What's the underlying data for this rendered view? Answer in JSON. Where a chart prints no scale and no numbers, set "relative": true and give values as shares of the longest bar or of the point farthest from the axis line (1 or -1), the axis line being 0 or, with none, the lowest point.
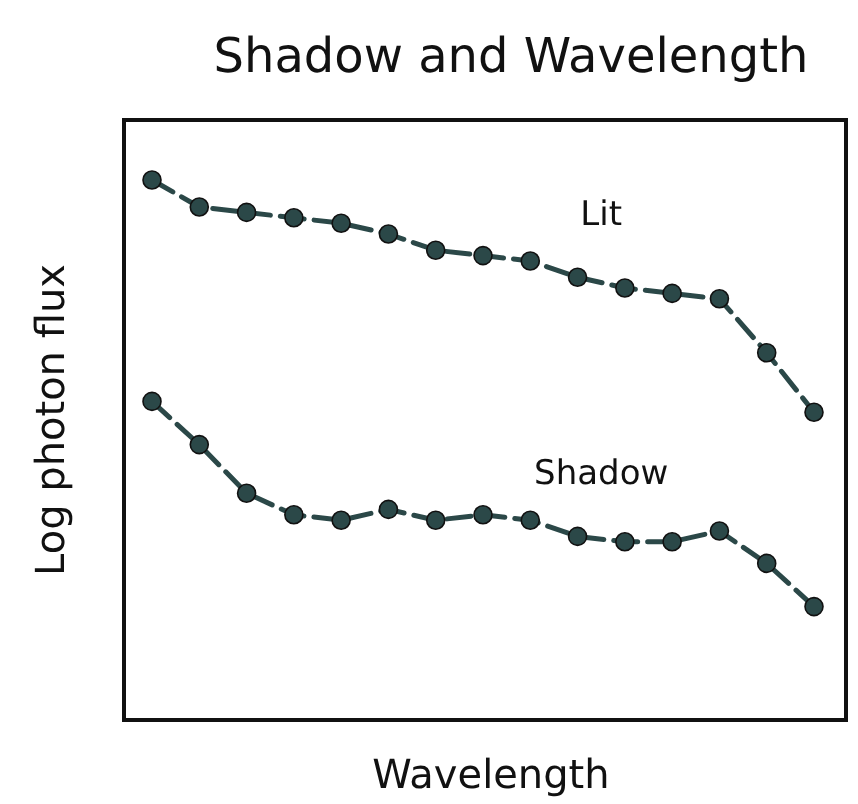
{
  "chart_data": {
    "type": "line",
    "title": "Shadow and Wavelength",
    "xlabel": "Wavelength",
    "ylabel": "Log photon flux",
    "relative": true,
    "marker": "circle",
    "line_style": "dashed",
    "grid": false,
    "categories": [
      null,
      null,
      null,
      null,
      null,
      null,
      null,
      null,
      null,
      null,
      null,
      null,
      null,
      null,
      null
    ],
    "series": [
      {
        "name": "Lit",
        "color": "#2b4848",
        "values": [
          1.0,
          0.95,
          0.94,
          0.93,
          0.92,
          0.9,
          0.87,
          0.86,
          0.85,
          0.82,
          0.8,
          0.79,
          0.78,
          0.68,
          0.57
        ]
      },
      {
        "name": "Shadow",
        "color": "#2b4848",
        "values": [
          0.59,
          0.51,
          0.42,
          0.38,
          0.37,
          0.39,
          0.37,
          0.38,
          0.37,
          0.34,
          0.33,
          0.33,
          0.35,
          0.29,
          0.21
        ]
      }
    ]
  }
}
